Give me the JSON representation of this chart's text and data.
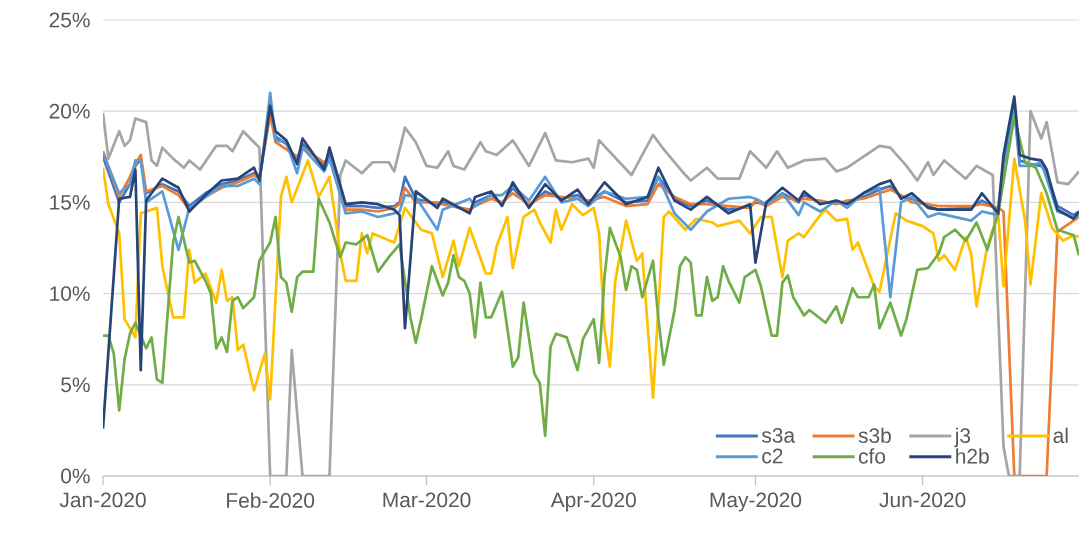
{
  "chart_data": {
    "type": "line",
    "x": [
      "2020-01-01",
      "2020-01-04",
      "2020-01-06",
      "2020-01-07",
      "2020-01-08",
      "2020-01-09",
      "2020-01-12",
      "2020-01-15",
      "2020-01-17",
      "2020-01-20",
      "2020-01-23",
      "2020-01-26",
      "2020-01-29",
      "2020-01-30",
      "2020-02-01",
      "2020-02-02",
      "2020-02-04",
      "2020-02-06",
      "2020-02-07",
      "2020-02-11",
      "2020-02-12",
      "2020-02-15",
      "2020-02-18",
      "2020-02-21",
      "2020-02-24",
      "2020-02-25",
      "2020-02-26",
      "2020-02-28",
      "2020-03-03",
      "2020-03-04",
      "2020-03-09",
      "2020-03-10",
      "2020-03-13",
      "2020-03-15",
      "2020-03-17",
      "2020-03-20",
      "2020-03-23",
      "2020-03-26",
      "2020-03-29",
      "2020-03-31",
      "2020-04-03",
      "2020-04-07",
      "2020-04-11",
      "2020-04-13",
      "2020-04-16",
      "2020-04-19",
      "2020-04-22",
      "2020-04-26",
      "2020-04-30",
      "2020-05-01",
      "2020-05-03",
      "2020-05-06",
      "2020-05-09",
      "2020-05-10",
      "2020-05-13",
      "2020-05-16",
      "2020-05-18",
      "2020-05-21",
      "2020-05-24",
      "2020-05-26",
      "2020-05-28",
      "2020-05-30",
      "2020-06-02",
      "2020-06-04",
      "2020-06-10",
      "2020-06-12",
      "2020-06-15",
      "2020-06-16",
      "2020-06-18",
      "2020-06-19",
      "2020-06-21",
      "2020-06-23",
      "2020-06-24",
      "2020-06-26",
      "2020-06-29",
      "2020-06-30"
    ],
    "series": [
      {
        "name": "s3a",
        "color": "#4472c4",
        "values": [
          17.5,
          15.0,
          16.0,
          17.0,
          17.4,
          15.5,
          16.0,
          15.6,
          14.8,
          15.5,
          16.0,
          16.2,
          16.6,
          16.4,
          20.0,
          18.6,
          18.2,
          17.3,
          18.2,
          17.0,
          17.6,
          14.8,
          14.8,
          14.7,
          14.8,
          15.0,
          16.4,
          15.2,
          14.9,
          15.0,
          14.5,
          15.0,
          15.4,
          14.9,
          15.8,
          14.8,
          15.6,
          15.2,
          15.4,
          15.0,
          15.6,
          15.0,
          15.1,
          16.4,
          15.2,
          14.8,
          15.1,
          14.6,
          14.8,
          15.0,
          14.9,
          15.5,
          15.0,
          15.4,
          15.0,
          15.0,
          15.0,
          15.3,
          15.7,
          15.9,
          15.3,
          15.2,
          14.8,
          14.6,
          14.7,
          15.1,
          14.6,
          17.2,
          20.2,
          17.3,
          17.1,
          17.0,
          16.6,
          14.8,
          14.3,
          14.5
        ]
      },
      {
        "name": "s3b",
        "color": "#ed7d31",
        "values": [
          17.8,
          15.3,
          16.4,
          17.1,
          17.6,
          15.6,
          15.9,
          15.4,
          14.6,
          15.3,
          15.8,
          16.1,
          16.5,
          16.3,
          19.8,
          18.3,
          17.9,
          17.5,
          18.0,
          17.2,
          17.4,
          14.6,
          14.6,
          14.5,
          14.7,
          14.9,
          15.8,
          15.0,
          15.0,
          14.9,
          14.6,
          14.8,
          15.2,
          15.0,
          15.5,
          14.9,
          15.4,
          15.3,
          15.2,
          15.1,
          15.3,
          14.8,
          14.9,
          16.0,
          15.3,
          14.9,
          14.9,
          14.8,
          14.7,
          15.1,
          14.8,
          15.3,
          15.1,
          15.2,
          15.1,
          14.9,
          15.1,
          15.2,
          15.5,
          15.7,
          15.4,
          15.0,
          14.9,
          14.8,
          14.8,
          14.9,
          14.7,
          14.5,
          0,
          0,
          0,
          0,
          0,
          13.4,
          14.0,
          14.2
        ]
      },
      {
        "name": "j3",
        "color": "#a5a5a5",
        "x": [
          "2020-01-01",
          "2020-01-02",
          "2020-01-04",
          "2020-01-05",
          "2020-01-06",
          "2020-01-07",
          "2020-01-09",
          "2020-01-10",
          "2020-01-11",
          "2020-01-12",
          "2020-01-14",
          "2020-01-16",
          "2020-01-17",
          "2020-01-19",
          "2020-01-22",
          "2020-01-24",
          "2020-01-25",
          "2020-01-27",
          "2020-01-29",
          "2020-01-30",
          "2020-02-01",
          "2020-02-04",
          "2020-02-05",
          "2020-02-07",
          "2020-02-12",
          "2020-02-14",
          "2020-02-15",
          "2020-02-18",
          "2020-02-20",
          "2020-02-23",
          "2020-02-24",
          "2020-02-26",
          "2020-02-28",
          "2020-03-01",
          "2020-03-03",
          "2020-03-05",
          "2020-03-06",
          "2020-03-08",
          "2020-03-11",
          "2020-03-12",
          "2020-03-14",
          "2020-03-17",
          "2020-03-20",
          "2020-03-23",
          "2020-03-25",
          "2020-03-28",
          "2020-03-31",
          "2020-04-01",
          "2020-04-02",
          "2020-04-08",
          "2020-04-12",
          "2020-04-14",
          "2020-04-18",
          "2020-04-19",
          "2020-04-22",
          "2020-04-24",
          "2020-04-28",
          "2020-04-30",
          "2020-05-03",
          "2020-05-05",
          "2020-05-07",
          "2020-05-10",
          "2020-05-14",
          "2020-05-16",
          "2020-05-18",
          "2020-05-24",
          "2020-05-26",
          "2020-05-29",
          "2020-05-31",
          "2020-06-02",
          "2020-06-03",
          "2020-06-05",
          "2020-06-09",
          "2020-06-11",
          "2020-06-14",
          "2020-06-16",
          "2020-06-17",
          "2020-06-19",
          "2020-06-21",
          "2020-06-23",
          "2020-06-24",
          "2020-06-26",
          "2020-06-28",
          "2020-06-30"
        ],
        "values": [
          19.9,
          17.4,
          18.9,
          18.1,
          18.4,
          19.6,
          19.4,
          17.3,
          17.0,
          18.0,
          17.4,
          16.9,
          17.3,
          16.8,
          18.1,
          18.1,
          17.8,
          18.9,
          18.3,
          18.0,
          0,
          0,
          6.9,
          0,
          0,
          16.5,
          17.3,
          16.6,
          17.2,
          17.2,
          16.7,
          19.1,
          18.3,
          17.0,
          16.9,
          17.8,
          17.0,
          16.8,
          18.3,
          17.8,
          17.6,
          18.4,
          17.0,
          18.8,
          17.3,
          17.2,
          17.4,
          16.9,
          18.4,
          16.5,
          18.7,
          17.9,
          16.5,
          16.2,
          16.9,
          16.3,
          16.3,
          17.8,
          16.9,
          17.8,
          16.9,
          17.3,
          17.4,
          16.7,
          16.9,
          18.1,
          18.0,
          17.0,
          16.2,
          17.2,
          16.5,
          17.3,
          16.3,
          17.0,
          16.5,
          1.6,
          0,
          0,
          20.0,
          18.5,
          19.4,
          16.1,
          16.0,
          16.7
        ]
      },
      {
        "name": "al",
        "color": "#ffc000",
        "x": [
          "2020-01-01",
          "2020-01-02",
          "2020-01-04",
          "2020-01-05",
          "2020-01-07",
          "2020-01-08",
          "2020-01-11",
          "2020-01-12",
          "2020-01-14",
          "2020-01-16",
          "2020-01-17",
          "2020-01-18",
          "2020-01-20",
          "2020-01-22",
          "2020-01-23",
          "2020-01-24",
          "2020-01-25",
          "2020-01-26",
          "2020-01-27",
          "2020-01-29",
          "2020-01-31",
          "2020-02-01",
          "2020-02-03",
          "2020-02-04",
          "2020-02-05",
          "2020-02-08",
          "2020-02-10",
          "2020-02-12",
          "2020-02-14",
          "2020-02-15",
          "2020-02-17",
          "2020-02-18",
          "2020-02-19",
          "2020-02-20",
          "2020-02-24",
          "2020-02-26",
          "2020-02-29",
          "2020-03-02",
          "2020-03-04",
          "2020-03-06",
          "2020-03-07",
          "2020-03-09",
          "2020-03-12",
          "2020-03-13",
          "2020-03-14",
          "2020-03-16",
          "2020-03-17",
          "2020-03-19",
          "2020-03-21",
          "2020-03-22",
          "2020-03-24",
          "2020-03-25",
          "2020-03-26",
          "2020-03-28",
          "2020-03-30",
          "2020-04-01",
          "2020-04-02",
          "2020-04-03",
          "2020-04-04",
          "2020-04-05",
          "2020-04-07",
          "2020-04-09",
          "2020-04-10",
          "2020-04-12",
          "2020-04-14",
          "2020-04-15",
          "2020-04-18",
          "2020-04-20",
          "2020-04-23",
          "2020-04-24",
          "2020-04-28",
          "2020-04-30",
          "2020-05-02",
          "2020-05-04",
          "2020-05-06",
          "2020-05-07",
          "2020-05-09",
          "2020-05-10",
          "2020-05-13",
          "2020-05-14",
          "2020-05-16",
          "2020-05-18",
          "2020-05-19",
          "2020-05-20",
          "2020-05-23",
          "2020-05-24",
          "2020-05-27",
          "2020-05-29",
          "2020-06-01",
          "2020-06-03",
          "2020-06-04",
          "2020-06-05",
          "2020-06-07",
          "2020-06-09",
          "2020-06-10",
          "2020-06-11",
          "2020-06-13",
          "2020-06-15",
          "2020-06-16",
          "2020-06-18",
          "2020-06-20",
          "2020-06-21",
          "2020-06-23",
          "2020-06-25",
          "2020-06-27",
          "2020-06-29",
          "2020-06-30"
        ],
        "values": [
          16.9,
          14.9,
          13.3,
          8.6,
          7.6,
          14.4,
          14.7,
          11.5,
          8.7,
          8.7,
          12.4,
          10.6,
          11.1,
          9.5,
          11.3,
          9.6,
          9.8,
          6.9,
          7.2,
          4.7,
          6.7,
          4.2,
          15.3,
          16.4,
          15.0,
          17.3,
          15.3,
          16.4,
          12.2,
          10.7,
          10.7,
          13.3,
          12.2,
          13.3,
          12.8,
          14.7,
          13.5,
          13.3,
          10.9,
          12.9,
          11.5,
          13.6,
          11.1,
          11.1,
          12.6,
          14.2,
          11.4,
          14.2,
          14.6,
          13.9,
          12.8,
          14.6,
          13.5,
          14.9,
          14.3,
          14.7,
          13.3,
          8.0,
          6.0,
          10.7,
          14.0,
          11.8,
          12.2,
          4.3,
          14.2,
          14.5,
          13.5,
          14.1,
          13.9,
          13.7,
          14.0,
          13.3,
          14.2,
          14.2,
          10.9,
          12.9,
          13.3,
          13.1,
          14.3,
          14.6,
          14.0,
          14.1,
          12.4,
          12.8,
          10.4,
          10.1,
          14.4,
          14.0,
          13.7,
          13.3,
          11.8,
          12.1,
          11.3,
          13.1,
          12.2,
          9.3,
          12.6,
          14.4,
          10.4,
          17.4,
          14.0,
          10.5,
          15.5,
          13.6,
          12.9,
          13.2,
          13.1
        ]
      },
      {
        "name": "c2",
        "color": "#5b9bd5",
        "values": [
          17.7,
          15.5,
          16.0,
          17.3,
          17.3,
          15.0,
          15.6,
          12.4,
          14.7,
          15.3,
          15.9,
          15.9,
          16.3,
          16.0,
          21.0,
          18.4,
          18.3,
          16.6,
          18.0,
          16.7,
          17.4,
          14.4,
          14.5,
          14.2,
          14.4,
          14.5,
          15.4,
          15.3,
          13.5,
          14.6,
          15.2,
          14.8,
          15.4,
          15.4,
          15.9,
          15.1,
          16.4,
          15.0,
          15.2,
          14.8,
          15.6,
          15.2,
          15.3,
          16.4,
          14.4,
          13.5,
          14.5,
          15.2,
          15.3,
          15.2,
          14.9,
          15.5,
          14.3,
          15.0,
          14.5,
          15.1,
          14.7,
          15.5,
          15.8,
          9.8,
          15.0,
          15.3,
          14.2,
          14.4,
          14.0,
          14.5,
          14.3,
          16.5,
          20.0,
          17.0,
          17.0,
          17.2,
          16.3,
          14.5,
          14.2,
          14.3
        ]
      },
      {
        "name": "cfo",
        "color": "#70ad47",
        "x": [
          "2020-01-01",
          "2020-01-02",
          "2020-01-03",
          "2020-01-04",
          "2020-01-05",
          "2020-01-06",
          "2020-01-07",
          "2020-01-09",
          "2020-01-10",
          "2020-01-11",
          "2020-01-12",
          "2020-01-14",
          "2020-01-15",
          "2020-01-17",
          "2020-01-18",
          "2020-01-20",
          "2020-01-21",
          "2020-01-22",
          "2020-01-23",
          "2020-01-24",
          "2020-01-25",
          "2020-01-26",
          "2020-01-27",
          "2020-01-29",
          "2020-01-30",
          "2020-02-01",
          "2020-02-02",
          "2020-02-03",
          "2020-02-04",
          "2020-02-05",
          "2020-02-06",
          "2020-02-07",
          "2020-02-09",
          "2020-02-10",
          "2020-02-12",
          "2020-02-14",
          "2020-02-15",
          "2020-02-17",
          "2020-02-19",
          "2020-02-21",
          "2020-02-23",
          "2020-02-25",
          "2020-02-27",
          "2020-02-28",
          "2020-02-29",
          "2020-03-02",
          "2020-03-04",
          "2020-03-05",
          "2020-03-06",
          "2020-03-07",
          "2020-03-08",
          "2020-03-09",
          "2020-03-10",
          "2020-03-11",
          "2020-03-12",
          "2020-03-13",
          "2020-03-15",
          "2020-03-17",
          "2020-03-18",
          "2020-03-19",
          "2020-03-21",
          "2020-03-22",
          "2020-03-23",
          "2020-03-24",
          "2020-03-25",
          "2020-03-27",
          "2020-03-29",
          "2020-03-30",
          "2020-04-01",
          "2020-04-02",
          "2020-04-03",
          "2020-04-04",
          "2020-04-06",
          "2020-04-07",
          "2020-04-08",
          "2020-04-09",
          "2020-04-10",
          "2020-04-12",
          "2020-04-13",
          "2020-04-14",
          "2020-04-16",
          "2020-04-17",
          "2020-04-18",
          "2020-04-19",
          "2020-04-20",
          "2020-04-21",
          "2020-04-22",
          "2020-04-23",
          "2020-04-24",
          "2020-04-25",
          "2020-04-26",
          "2020-04-28",
          "2020-04-29",
          "2020-05-01",
          "2020-05-02",
          "2020-05-04",
          "2020-05-05",
          "2020-05-06",
          "2020-05-07",
          "2020-05-08",
          "2020-05-10",
          "2020-05-11",
          "2020-05-14",
          "2020-05-16",
          "2020-05-17",
          "2020-05-19",
          "2020-05-20",
          "2020-05-22",
          "2020-05-23",
          "2020-05-24",
          "2020-05-26",
          "2020-05-28",
          "2020-05-29",
          "2020-05-31",
          "2020-06-02",
          "2020-06-04",
          "2020-06-05",
          "2020-06-07",
          "2020-06-09",
          "2020-06-11",
          "2020-06-13",
          "2020-06-15",
          "2020-06-18",
          "2020-06-20",
          "2020-06-22",
          "2020-06-24",
          "2020-06-26",
          "2020-06-29",
          "2020-06-30"
        ],
        "values": [
          7.7,
          7.7,
          6.7,
          3.6,
          6.4,
          7.8,
          8.4,
          7.0,
          7.6,
          5.3,
          5.1,
          12.8,
          14.2,
          11.7,
          11.8,
          10.7,
          10.0,
          7.0,
          7.6,
          6.8,
          9.6,
          9.8,
          9.2,
          9.8,
          11.8,
          12.8,
          14.2,
          10.9,
          10.6,
          9.0,
          10.9,
          11.2,
          11.2,
          15.2,
          13.9,
          12.0,
          12.8,
          12.7,
          13.2,
          11.2,
          12.0,
          12.7,
          8.7,
          7.3,
          8.6,
          11.5,
          9.9,
          10.6,
          12.1,
          10.9,
          10.7,
          10.0,
          7.6,
          10.6,
          8.7,
          8.7,
          10.1,
          6.0,
          6.5,
          9.5,
          5.6,
          5.1,
          2.2,
          7.1,
          7.8,
          7.6,
          5.8,
          7.5,
          8.6,
          6.2,
          10.9,
          13.6,
          12.0,
          10.2,
          11.5,
          11.3,
          9.8,
          11.8,
          8.6,
          6.1,
          9.1,
          11.5,
          12.0,
          11.7,
          8.8,
          8.8,
          10.9,
          9.6,
          9.8,
          11.5,
          10.7,
          9.5,
          10.9,
          11.3,
          10.4,
          7.7,
          7.7,
          10.6,
          11.0,
          9.8,
          8.8,
          9.1,
          8.4,
          9.3,
          8.4,
          10.3,
          9.8,
          9.8,
          10.5,
          8.1,
          9.5,
          7.7,
          8.6,
          11.3,
          11.4,
          12.2,
          13.1,
          13.5,
          12.9,
          13.9,
          12.4,
          14.4,
          19.7,
          17.2,
          16.9,
          15.5,
          13.5,
          13.2,
          12.1
        ]
      },
      {
        "name": "h2b",
        "color": "#264478",
        "values": [
          2.6,
          15.2,
          15.3,
          16.8,
          5.8,
          15.1,
          16.3,
          15.8,
          14.5,
          15.4,
          16.2,
          16.3,
          16.9,
          16.2,
          20.3,
          18.9,
          18.4,
          17.1,
          18.5,
          16.8,
          18.0,
          14.9,
          15.0,
          14.9,
          14.6,
          14.3,
          8.1,
          15.6,
          14.7,
          15.2,
          14.4,
          15.3,
          15.6,
          14.8,
          16.1,
          14.7,
          16.0,
          15.1,
          15.7,
          14.9,
          16.1,
          14.9,
          15.3,
          16.9,
          15.1,
          14.6,
          15.3,
          14.4,
          14.9,
          11.7,
          15.0,
          15.8,
          15.1,
          15.6,
          14.9,
          15.1,
          14.9,
          15.5,
          16.0,
          16.2,
          15.2,
          15.5,
          14.7,
          14.6,
          14.6,
          15.5,
          14.4,
          17.6,
          20.8,
          17.6,
          17.4,
          17.3,
          16.8,
          14.6,
          14.1,
          14.5
        ]
      }
    ],
    "xlim": [
      "2020-01-01",
      "2020-06-30"
    ],
    "xticks": [
      {
        "value": "2020-01-01",
        "label": "Jan-2020"
      },
      {
        "value": "2020-02-01",
        "label": "Feb-2020"
      },
      {
        "value": "2020-03-01",
        "label": "Mar-2020"
      },
      {
        "value": "2020-04-01",
        "label": "Apr-2020"
      },
      {
        "value": "2020-05-01",
        "label": "May-2020"
      },
      {
        "value": "2020-06-01",
        "label": "Jun-2020"
      }
    ],
    "ylim": [
      0,
      25
    ],
    "yticks": [
      {
        "value": 0,
        "label": "0%"
      },
      {
        "value": 5,
        "label": "5%"
      },
      {
        "value": 10,
        "label": "10%"
      },
      {
        "value": 15,
        "label": "15%"
      },
      {
        "value": 20,
        "label": "20%"
      },
      {
        "value": 25,
        "label": "25%"
      }
    ],
    "grid": "y",
    "legend": "bottom right"
  }
}
